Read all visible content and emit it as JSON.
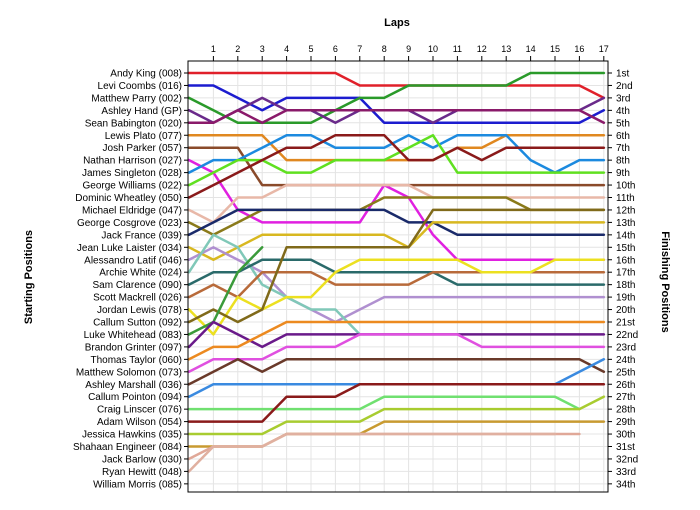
{
  "chart_data": {
    "type": "line",
    "title": "Laps",
    "ylabel": "Starting Positions",
    "ylabel_right": "Finishing Positions",
    "laps": [
      1,
      2,
      3,
      4,
      5,
      6,
      7,
      8,
      9,
      10,
      11,
      12,
      13,
      14,
      15,
      16,
      17
    ],
    "finish_labels": [
      "1st",
      "2nd",
      "3rd",
      "4th",
      "5th",
      "6th",
      "7th",
      "8th",
      "9th",
      "10th",
      "11th",
      "12th",
      "13th",
      "14th",
      "15th",
      "16th",
      "17th",
      "18th",
      "19th",
      "20th",
      "21st",
      "22nd",
      "23rd",
      "24th",
      "25th",
      "26th",
      "27th",
      "28th",
      "29th",
      "30th",
      "31st",
      "32nd",
      "33rd",
      "34th"
    ],
    "grid": true,
    "series": [
      {
        "name": "Andy King (008)",
        "color": "#e0202a",
        "positions": [
          1,
          1,
          1,
          1,
          1,
          1,
          1,
          2,
          2,
          2,
          2,
          2,
          2,
          2,
          2,
          2,
          2,
          3
        ]
      },
      {
        "name": "Levi Coombs (016)",
        "color": "#1c1ccf",
        "positions": [
          2,
          2,
          3,
          4,
          3,
          3,
          3,
          3,
          5,
          5,
          5,
          5,
          5,
          5,
          5,
          5,
          5,
          4
        ]
      },
      {
        "name": "Matthew Parry (002)",
        "color": "#2a9a2a",
        "positions": [
          3,
          4,
          5,
          5,
          5,
          5,
          4,
          3,
          3,
          2,
          2,
          2,
          2,
          2,
          1,
          1,
          1,
          1
        ]
      },
      {
        "name": "Ashley Hand (GP)",
        "color": "#6a2a8a",
        "positions": [
          4,
          5,
          4,
          3,
          4,
          4,
          5,
          4,
          4,
          4,
          5,
          4,
          4,
          4,
          4,
          4,
          4,
          3
        ]
      },
      {
        "name": "Sean Babington (020)",
        "color": "#8a1a6a",
        "positions": [
          5,
          5,
          4,
          5,
          4,
          4,
          4,
          4,
          4,
          4,
          4,
          4,
          4,
          4,
          4,
          4,
          4,
          5
        ]
      },
      {
        "name": "Lewis Plato (077)",
        "color": "#e08820",
        "positions": [
          6,
          6,
          6,
          6,
          8,
          8,
          8,
          8,
          8,
          8,
          8,
          7,
          7,
          6,
          6,
          6,
          6,
          6
        ]
      },
      {
        "name": "Josh Parker (057)",
        "color": "#8a4a2a",
        "positions": [
          7,
          7,
          7,
          10,
          10,
          10,
          10,
          10,
          10,
          10,
          10,
          10,
          10,
          10,
          10,
          10,
          10,
          10
        ]
      },
      {
        "name": "Nathan Harrison (027)",
        "color": "#e020e0",
        "positions": [
          8,
          9,
          12,
          13,
          13,
          13,
          13,
          13,
          10,
          11,
          14,
          16,
          16,
          16,
          16,
          16,
          16,
          16
        ]
      },
      {
        "name": "James Singleton (028)",
        "color": "#1c8adf",
        "positions": [
          9,
          8,
          8,
          7,
          6,
          6,
          7,
          7,
          7,
          6,
          7,
          6,
          6,
          6,
          8,
          9,
          8,
          8
        ]
      },
      {
        "name": "George Williams (022)",
        "color": "#60e020",
        "positions": [
          10,
          9,
          8,
          8,
          9,
          9,
          8,
          8,
          8,
          7,
          6,
          9,
          9,
          9,
          9,
          9,
          9,
          9
        ]
      },
      {
        "name": "Dominic Wheatley (050)",
        "color": "#8a1a1a",
        "positions": [
          11,
          10,
          9,
          8,
          7,
          7,
          6,
          6,
          6,
          8,
          8,
          7,
          8,
          7,
          7,
          7,
          7,
          7
        ]
      },
      {
        "name": "Michael Eldridge (047)",
        "color": "#e8b8a8",
        "positions": [
          12,
          13,
          11,
          11,
          10,
          10,
          10,
          10,
          10,
          10,
          11,
          11,
          11,
          11,
          11,
          11,
          11,
          11
        ]
      },
      {
        "name": "George Cosgrove (023)",
        "color": "#8a7a1a",
        "positions": [
          13,
          14,
          13,
          12,
          12,
          12,
          12,
          12,
          11,
          11,
          11,
          11,
          11,
          11,
          12,
          12,
          12,
          12
        ]
      },
      {
        "name": "Jack France (039)",
        "color": "#1a2a6a",
        "positions": [
          14,
          13,
          12,
          12,
          12,
          12,
          12,
          12,
          12,
          13,
          13,
          14,
          14,
          14,
          14,
          14,
          14,
          14
        ]
      },
      {
        "name": "Jean Luke Laister (034)",
        "color": "#d8b820",
        "positions": [
          15,
          16,
          15,
          14,
          14,
          14,
          14,
          14,
          14,
          15,
          13,
          13,
          13,
          13,
          13,
          13,
          13,
          13
        ]
      },
      {
        "name": "Alessandro Latif (046)",
        "color": "#b090d0",
        "positions": [
          16,
          15,
          16,
          17,
          19,
          20,
          21,
          20,
          19,
          19,
          19,
          19,
          19,
          19,
          19,
          19,
          19,
          19
        ]
      },
      {
        "name": "Archie White (024)",
        "color": "#80c8b8",
        "positions": [
          17,
          14,
          15,
          18,
          19,
          20,
          20,
          22
        ]
      },
      {
        "name": "Sam Clarence (090)",
        "color": "#2a6a6a",
        "positions": [
          18,
          17,
          17,
          16,
          16,
          16,
          17,
          17,
          17,
          17,
          17,
          18,
          18,
          18,
          18,
          18,
          18,
          18
        ]
      },
      {
        "name": "Scott Mackrell (026)",
        "color": "#b86a3a",
        "positions": [
          19,
          18,
          19,
          17,
          17,
          17,
          18,
          18,
          18,
          18,
          17,
          17,
          17,
          17,
          17,
          17,
          17,
          17
        ]
      },
      {
        "name": "Jordan Lewis (078)",
        "color": "#ece020",
        "positions": [
          20,
          22,
          19,
          20,
          19,
          19,
          17,
          16,
          16,
          16,
          16,
          16,
          17,
          17,
          17,
          16,
          16,
          16
        ]
      },
      {
        "name": "Callum Sutton (092)",
        "color": "#806a1a",
        "positions": [
          21,
          20,
          21,
          20,
          15,
          15,
          15,
          15,
          15,
          15,
          12,
          12,
          12,
          12,
          12,
          12,
          12,
          12
        ]
      },
      {
        "name": "Luke Whitehead (083)",
        "color": "#3a9a3a",
        "positions": [
          22,
          21,
          17,
          15
        ]
      },
      {
        "name": "Brandon Grinter (097)",
        "color": "#6a1a8a",
        "positions": [
          23,
          21,
          22,
          23,
          22,
          22,
          22,
          22,
          22,
          22,
          22,
          22,
          22,
          22,
          22,
          22,
          22,
          22
        ]
      },
      {
        "name": "Thomas Taylor (060)",
        "color": "#ec8a20",
        "positions": [
          24,
          23,
          23,
          22,
          21,
          21,
          21,
          21,
          21,
          21,
          21,
          21,
          21,
          21,
          21,
          21,
          21,
          21
        ]
      },
      {
        "name": "Matthew Solomon (073)",
        "color": "#e050e0",
        "positions": [
          25,
          24,
          24,
          24,
          23,
          23,
          23,
          22,
          22,
          22,
          22,
          22,
          23,
          23,
          23,
          23,
          23,
          23
        ]
      },
      {
        "name": "Ashley Marshall (036)",
        "color": "#6a3a2a",
        "positions": [
          26,
          25,
          24,
          25,
          24,
          24,
          24,
          24,
          24,
          24,
          24,
          24,
          24,
          24,
          24,
          24,
          24,
          25
        ]
      },
      {
        "name": "Callum Pointon (094)",
        "color": "#3a8ae0",
        "positions": [
          27,
          26,
          26,
          26,
          26,
          26,
          26,
          26,
          26,
          26,
          26,
          26,
          26,
          26,
          26,
          26,
          25,
          24
        ]
      },
      {
        "name": "Craig Linscer (076)",
        "color": "#70e070",
        "positions": [
          28,
          28,
          28,
          28,
          28,
          28,
          28,
          28,
          27,
          27,
          27,
          27,
          27,
          27,
          27,
          27,
          28
        ]
      },
      {
        "name": "Adam Wilson (054)",
        "color": "#8a1a1a",
        "positions": [
          29,
          29,
          29,
          29,
          27,
          27,
          27,
          26,
          26,
          26,
          26,
          26,
          26,
          26,
          26,
          26,
          26,
          26
        ]
      },
      {
        "name": "Jessica Hawkins (035)",
        "color": "#a8cc30",
        "positions": [
          30,
          30,
          30,
          30,
          29,
          29,
          29,
          29,
          28,
          28,
          28,
          28,
          28,
          28,
          28,
          28,
          28,
          27
        ]
      },
      {
        "name": "Shahaan Engineer (084)",
        "color": "#c89a30",
        "positions": [
          31,
          31,
          31,
          31,
          30,
          30,
          30,
          30,
          29,
          29,
          29,
          29,
          29,
          29,
          29,
          29,
          29,
          29
        ]
      },
      {
        "name": "Jack Barlow (030)",
        "color": "#e0a898",
        "positions": [
          32,
          31,
          31,
          31,
          30,
          30,
          30,
          30,
          30,
          30,
          30,
          30,
          30,
          30,
          30,
          30,
          30
        ]
      },
      {
        "name": "Ryan Hewitt (048)",
        "color": "#e0b0a0",
        "positions": [
          33,
          31,
          31,
          31,
          30,
          30,
          30,
          30,
          30,
          30,
          30,
          30,
          30,
          30,
          30,
          30
        ]
      },
      {
        "name": "William Morris (085)",
        "color": "#8a8a8a",
        "positions": []
      }
    ]
  }
}
